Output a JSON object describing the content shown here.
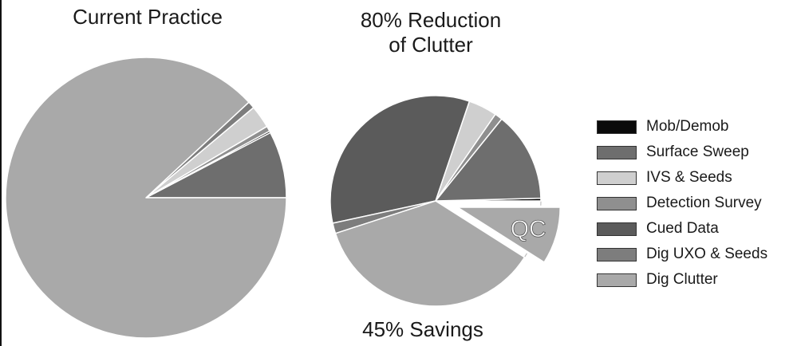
{
  "figure": {
    "left_title": "Current Practice",
    "right_title_line1": "80% Reduction",
    "right_title_line2": "of Clutter",
    "footer": "45% Savings",
    "qc_label": "QC"
  },
  "legend": [
    {
      "label": "Mob/Demob",
      "color": "#0a0a0a"
    },
    {
      "label": "Surface Sweep",
      "color": "#6e6e6e"
    },
    {
      "label": "IVS & Seeds",
      "color": "#cfcfcf"
    },
    {
      "label": "Detection Survey",
      "color": "#8f8f8f"
    },
    {
      "label": "Cued Data",
      "color": "#5b5b5b"
    },
    {
      "label": "Dig UXO & Seeds",
      "color": "#7d7d7d"
    },
    {
      "label": "Dig Clutter",
      "color": "#a9a9a9"
    }
  ],
  "chart_data": [
    {
      "type": "pie",
      "title": "Current Practice",
      "slices": [
        {
          "label": "Dig Clutter",
          "value": 87.2,
          "color": "#a9a9a9"
        },
        {
          "label": "Dig UXO & Seeds",
          "value": 0.8,
          "color": "#7d7d7d"
        },
        {
          "label": "IVS & Seeds",
          "value": 2.6,
          "color": "#cfcfcf"
        },
        {
          "label": "Detection Survey",
          "value": 0.6,
          "color": "#8f8f8f"
        },
        {
          "label": "Surface Sweep",
          "value": 7.6,
          "color": "#6e6e6e"
        },
        {
          "label": "Mob/Demob",
          "value": 0.2,
          "color": "#0a0a0a"
        }
      ]
    },
    {
      "type": "pie",
      "title": "80% Reduction of Clutter",
      "footer": "45% Savings",
      "slices": [
        {
          "label": "Mob/Demob",
          "value": 0.4,
          "color": "#0a0a0a"
        },
        {
          "label": "QC",
          "value": 9.0,
          "color": "#a9a9a9",
          "exploded": true
        },
        {
          "label": "Dig Clutter",
          "value": 36.0,
          "color": "#a9a9a9"
        },
        {
          "label": "Dig UXO & Seeds",
          "value": 1.6,
          "color": "#7d7d7d"
        },
        {
          "label": "Cued Data",
          "value": 33.6,
          "color": "#5b5b5b"
        },
        {
          "label": "IVS & Seeds",
          "value": 4.4,
          "color": "#cfcfcf"
        },
        {
          "label": "Detection Survey",
          "value": 1.2,
          "color": "#8f8f8f"
        },
        {
          "label": "Surface Sweep",
          "value": 13.8,
          "color": "#6e6e6e"
        }
      ]
    }
  ]
}
